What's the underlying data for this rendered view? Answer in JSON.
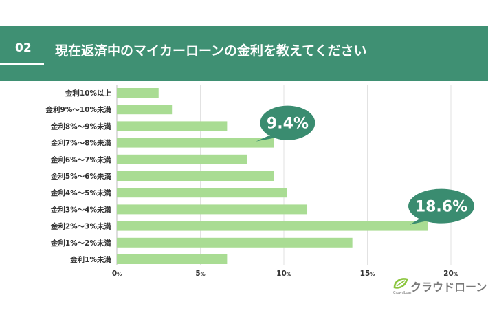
{
  "header": {
    "number": "02",
    "title": "現在返済中のマイカーローンの金利を教えてください"
  },
  "chart_data": {
    "type": "bar",
    "orientation": "horizontal",
    "categories": [
      "金利10%以上",
      "金利9%〜10%未満",
      "金利8%〜9%未満",
      "金利7%〜8%未満",
      "金利6%〜7%未満",
      "金利5%〜6%未満",
      "金利4%〜5%未満",
      "金利3%〜4%未満",
      "金利2%〜3%未満",
      "金利1%〜2%未満",
      "金利1%未満"
    ],
    "values": [
      2.5,
      3.3,
      6.6,
      9.4,
      7.8,
      9.4,
      10.2,
      11.4,
      18.6,
      14.1,
      6.6
    ],
    "xlim": [
      0,
      20
    ],
    "xticks": [
      0,
      5,
      10,
      15,
      20
    ],
    "tick_unit": "%",
    "grid": "vertical",
    "bar_color": "#a9dc93",
    "annotations": [
      {
        "category_index": 3,
        "text": "9.4%"
      },
      {
        "category_index": 8,
        "text": "18.6%"
      }
    ],
    "bubble_color": "#3a8c70"
  },
  "logo": {
    "text": "クラウドローン",
    "sub": "CrowdLoan",
    "icon": "crowdloan-leaf-icon",
    "icon_color": "#8cc63f"
  }
}
